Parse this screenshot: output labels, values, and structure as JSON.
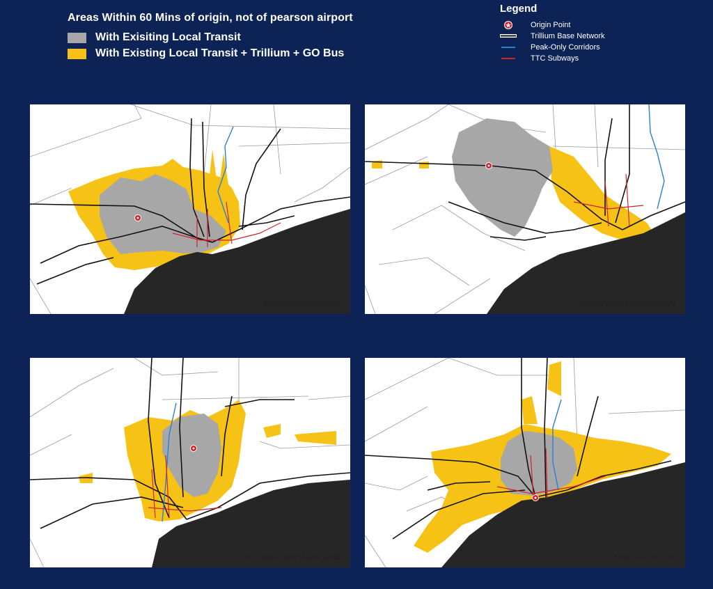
{
  "header": {
    "title": "Areas Within 60 Mins of origin, not of pearson airport",
    "keys": [
      {
        "label": "With Exisiting Local Transit",
        "color": "#a7a7a7"
      },
      {
        "label": "With Existing Local Transit + Trillium + GO Bus",
        "color": "#f6c215"
      }
    ]
  },
  "legend": {
    "title": "Legend",
    "items": [
      {
        "label": "Origin Point",
        "symbol": "origin-star-icon",
        "color": "#d32027"
      },
      {
        "label": "Trillium Base Network",
        "symbol": "black-line",
        "color": "#111111"
      },
      {
        "label": "Peak-Only Corridors",
        "symbol": "blue-line",
        "color": "#2a7fd4"
      },
      {
        "label": "TTC Subways",
        "symbol": "red-line",
        "color": "#d32027"
      }
    ]
  },
  "colors": {
    "background": "#0d2356",
    "lake": "#262626",
    "grey_area": "#a7a7a7",
    "yellow_area": "#f6c215"
  },
  "panels": [
    {
      "label": "PEARSON AIRPORT"
    },
    {
      "label": "DOWNTOWN BRAMPTON"
    },
    {
      "label": "DOWNTOWN MARKHAM"
    },
    {
      "label": "UNION STATION"
    }
  ]
}
